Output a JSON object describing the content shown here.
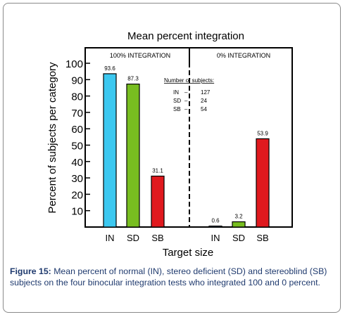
{
  "caption": {
    "label": "Figure 15:",
    "text": "Mean percent of normal (IN), stereo deficient (SD) and stereoblind (SB) subjects on the four binocular integration tests who integrated 100 and 0 percent."
  },
  "legend_box": {
    "title": "Number of subjects:",
    "rows": [
      {
        "label": "IN",
        "dash": "–",
        "value": "127"
      },
      {
        "label": "SD",
        "dash": "–",
        "value": "24"
      },
      {
        "label": "SB",
        "dash": "–",
        "value": "54"
      }
    ]
  },
  "chart_data": {
    "type": "bar",
    "title": "Mean percent integration",
    "xlabel": "Target size",
    "ylabel": "Percent of subjects per category",
    "ylim": [
      0,
      100
    ],
    "yticks": [
      10,
      20,
      30,
      40,
      50,
      60,
      70,
      80,
      90,
      100
    ],
    "grid": false,
    "groups": [
      {
        "label": "100% INTEGRATION",
        "categories": [
          "IN",
          "SD",
          "SB"
        ],
        "values": [
          93.6,
          87.3,
          31.1
        ],
        "value_labels": [
          "93.6",
          "87.3",
          "31.1"
        ]
      },
      {
        "label": "0% INTEGRATION",
        "categories": [
          "IN",
          "SD",
          "SB"
        ],
        "values": [
          0.6,
          3.2,
          53.9
        ],
        "value_labels": [
          "0.6",
          "3.2",
          "53.9"
        ]
      }
    ],
    "colors": {
      "IN": "#3cc8f0",
      "SD": "#78be20",
      "SB": "#e0191e"
    }
  }
}
